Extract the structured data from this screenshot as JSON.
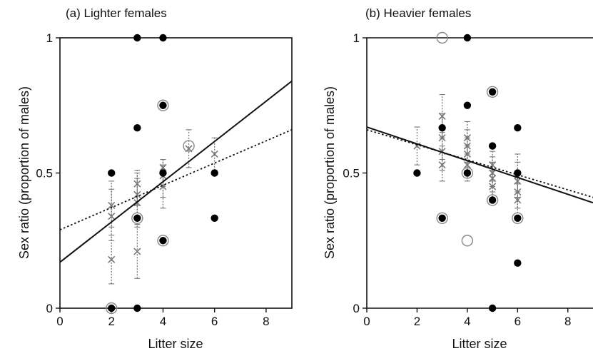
{
  "chart_data": [
    {
      "type": "scatter",
      "title": "(a) Lighter females",
      "xlabel": "Litter size",
      "ylabel": "Sex ratio (proportion of males)",
      "xlim": [
        0,
        9
      ],
      "ylim": [
        0,
        1
      ],
      "xticks": [
        "0",
        "2",
        "4",
        "6",
        "8"
      ],
      "yticks": [
        "0",
        "0.5",
        "1"
      ],
      "grid": false,
      "observed_points": [
        {
          "x": 2,
          "y": 0.5
        },
        {
          "x": 2,
          "y": 0
        },
        {
          "x": 3,
          "y": 1
        },
        {
          "x": 3,
          "y": 0.667
        },
        {
          "x": 3,
          "y": 0.333
        },
        {
          "x": 3,
          "y": 0
        },
        {
          "x": 4,
          "y": 1
        },
        {
          "x": 4,
          "y": 0.75
        },
        {
          "x": 4,
          "y": 0.5
        },
        {
          "x": 4,
          "y": 0.25
        },
        {
          "x": 6,
          "y": 0.5
        },
        {
          "x": 6,
          "y": 0.333
        }
      ],
      "hollow_points": [
        {
          "x": 2,
          "y": 0
        },
        {
          "x": 3,
          "y": 0.333
        },
        {
          "x": 4,
          "y": 0.75
        },
        {
          "x": 4,
          "y": 0.25
        },
        {
          "x": 5,
          "y": 0.6
        }
      ],
      "predicted_points": [
        {
          "x": 2,
          "y": 0.18,
          "lo": 0.09,
          "hi": 0.27
        },
        {
          "x": 2,
          "y": 0.34,
          "lo": 0.25,
          "hi": 0.44
        },
        {
          "x": 2,
          "y": 0.38,
          "lo": 0.3,
          "hi": 0.47
        },
        {
          "x": 3,
          "y": 0.21,
          "lo": 0.11,
          "hi": 0.31
        },
        {
          "x": 3,
          "y": 0.39,
          "lo": 0.3,
          "hi": 0.48
        },
        {
          "x": 3,
          "y": 0.42,
          "lo": 0.33,
          "hi": 0.5
        },
        {
          "x": 3,
          "y": 0.46,
          "lo": 0.38,
          "hi": 0.51
        },
        {
          "x": 4,
          "y": 0.45,
          "lo": 0.37,
          "hi": 0.53
        },
        {
          "x": 4,
          "y": 0.49,
          "lo": 0.41,
          "hi": 0.55
        },
        {
          "x": 4,
          "y": 0.52,
          "lo": 0.45,
          "hi": 0.55
        },
        {
          "x": 5,
          "y": 0.59,
          "lo": 0.52,
          "hi": 0.66
        },
        {
          "x": 6,
          "y": 0.57,
          "lo": 0.51,
          "hi": 0.63
        }
      ],
      "fit_solid": {
        "x": [
          0,
          9
        ],
        "y": [
          0.17,
          0.84
        ]
      },
      "fit_dotted": {
        "x": [
          0,
          9
        ],
        "y": [
          0.29,
          0.66
        ]
      }
    },
    {
      "type": "scatter",
      "title": "(b) Heavier females",
      "xlabel": "Litter size",
      "ylabel": "Sex ratio (proportion of males)",
      "xlim": [
        0,
        9
      ],
      "ylim": [
        0,
        1
      ],
      "xticks": [
        "0",
        "2",
        "4",
        "6",
        "8"
      ],
      "yticks": [
        "0",
        "0.5",
        "1"
      ],
      "grid": false,
      "observed_points": [
        {
          "x": 2,
          "y": 0.5
        },
        {
          "x": 3,
          "y": 0.667
        },
        {
          "x": 3,
          "y": 0.333
        },
        {
          "x": 4,
          "y": 1
        },
        {
          "x": 4,
          "y": 0.75
        },
        {
          "x": 4,
          "y": 0.5
        },
        {
          "x": 5,
          "y": 0.8
        },
        {
          "x": 5,
          "y": 0.6
        },
        {
          "x": 5,
          "y": 0.4
        },
        {
          "x": 5,
          "y": 0
        },
        {
          "x": 6,
          "y": 0.667
        },
        {
          "x": 6,
          "y": 0.5
        },
        {
          "x": 6,
          "y": 0.333
        },
        {
          "x": 6,
          "y": 0.167
        }
      ],
      "hollow_points": [
        {
          "x": 3,
          "y": 1
        },
        {
          "x": 3,
          "y": 0.333
        },
        {
          "x": 4,
          "y": 0.5
        },
        {
          "x": 4,
          "y": 0.25
        },
        {
          "x": 5,
          "y": 0.8
        },
        {
          "x": 5,
          "y": 0.4
        },
        {
          "x": 6,
          "y": 0.333
        }
      ],
      "predicted_points": [
        {
          "x": 2,
          "y": 0.6,
          "lo": 0.53,
          "hi": 0.67
        },
        {
          "x": 3,
          "y": 0.53,
          "lo": 0.47,
          "hi": 0.6
        },
        {
          "x": 3,
          "y": 0.58,
          "lo": 0.51,
          "hi": 0.65
        },
        {
          "x": 3,
          "y": 0.63,
          "lo": 0.55,
          "hi": 0.72
        },
        {
          "x": 3,
          "y": 0.71,
          "lo": 0.63,
          "hi": 0.79
        },
        {
          "x": 4,
          "y": 0.53,
          "lo": 0.47,
          "hi": 0.6
        },
        {
          "x": 4,
          "y": 0.57,
          "lo": 0.51,
          "hi": 0.63
        },
        {
          "x": 4,
          "y": 0.6,
          "lo": 0.54,
          "hi": 0.66
        },
        {
          "x": 4,
          "y": 0.63,
          "lo": 0.57,
          "hi": 0.69
        },
        {
          "x": 5,
          "y": 0.45,
          "lo": 0.4,
          "hi": 0.51
        },
        {
          "x": 5,
          "y": 0.48,
          "lo": 0.43,
          "hi": 0.54
        },
        {
          "x": 5,
          "y": 0.5,
          "lo": 0.45,
          "hi": 0.56
        },
        {
          "x": 5,
          "y": 0.53,
          "lo": 0.47,
          "hi": 0.58
        },
        {
          "x": 6,
          "y": 0.4,
          "lo": 0.33,
          "hi": 0.46
        },
        {
          "x": 6,
          "y": 0.43,
          "lo": 0.37,
          "hi": 0.5
        },
        {
          "x": 6,
          "y": 0.47,
          "lo": 0.41,
          "hi": 0.54
        },
        {
          "x": 6,
          "y": 0.49,
          "lo": 0.43,
          "hi": 0.57
        }
      ],
      "fit_solid": {
        "x": [
          0,
          9
        ],
        "y": [
          0.67,
          0.39
        ]
      },
      "fit_dotted": {
        "x": [
          0,
          9
        ],
        "y": [
          0.66,
          0.41
        ]
      }
    }
  ],
  "colors": {
    "axis": "#111111",
    "observed": "#000000",
    "hollow": "#888888",
    "predicted": "#777777",
    "fit": "#111111"
  }
}
